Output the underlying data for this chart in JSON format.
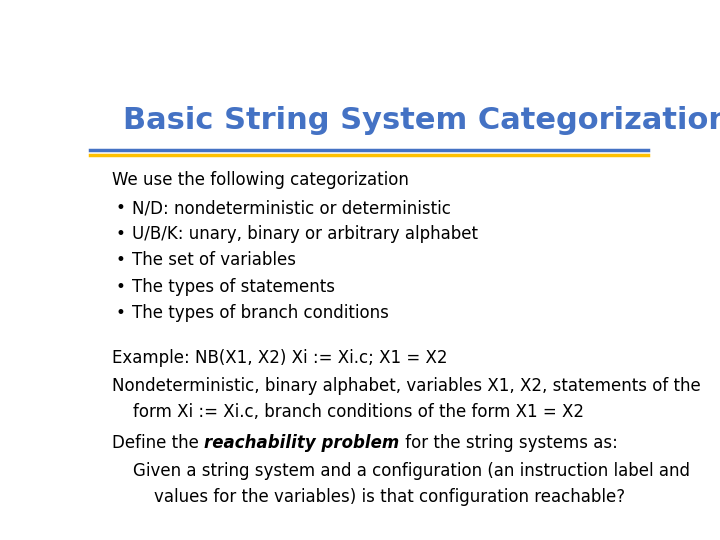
{
  "title": "Basic String System Categorization",
  "title_color": "#4472C4",
  "title_fontsize": 22,
  "bg_color": "#FFFFFF",
  "separator_color_top": "#4472C4",
  "separator_color_bottom": "#FFC000",
  "intro_text": "We use the following categorization",
  "bullets": [
    "N/D: nondeterministic or deterministic",
    "U/B/K: unary, binary or arbitrary alphabet",
    "The set of variables",
    "The types of statements",
    "The types of branch conditions"
  ],
  "example_line1": "Example: NB(X1, X2) Xi := Xi.c; X1 = X2",
  "example_line2": "Nondeterministic, binary alphabet, variables X1, X2, statements of the",
  "example_line3": "    form Xi := Xi.c, branch conditions of the form X1 = X2",
  "define_line1_pre": "Define the ",
  "define_line1_bold_italic": "reachability problem",
  "define_line1_post": " for the string systems as:",
  "define_line2": "    Given a string system and a configuration (an instruction label and",
  "define_line3": "        values for the variables) is that configuration reachable?",
  "body_fontsize": 12,
  "body_color": "#000000"
}
